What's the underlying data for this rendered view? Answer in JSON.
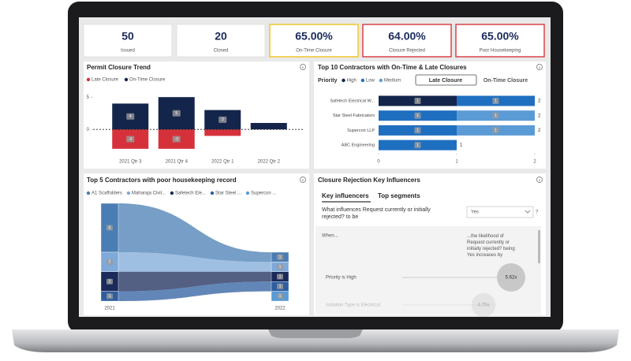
{
  "kpis": [
    {
      "value": "50",
      "label": "Issued",
      "border": "#dddddd"
    },
    {
      "value": "20",
      "label": "Closed",
      "border": "#dddddd"
    },
    {
      "value": "65.00%",
      "label": "On-Time Closure",
      "border": "#f0c419"
    },
    {
      "value": "64.00%",
      "label": "Closure Rejected",
      "border": "#d9363e"
    },
    {
      "value": "65.00%",
      "label": "Poor Housekeeping",
      "border": "#d9363e"
    }
  ],
  "chart_data": [
    {
      "type": "bar",
      "title": "Permit Closure Trend",
      "categories": [
        "2021 Qtr 3",
        "2021 Qtr 4",
        "2022 Qtr 1",
        "2022 Qtr 2"
      ],
      "series": [
        {
          "name": "Late Closure",
          "color": "#d6313b",
          "values": [
            -3,
            -3,
            -1,
            0
          ]
        },
        {
          "name": "On-Time Closure",
          "color": "#13254a",
          "values": [
            4,
            5,
            3,
            1
          ]
        }
      ],
      "ylim": [
        -4,
        6
      ],
      "yticks": [
        0,
        5
      ],
      "legend": "top-left",
      "zero_line": "dashed"
    },
    {
      "type": "hbar-stacked",
      "title": "Top 10 Contractors with On-Time & Late Closures",
      "legend_title": "Priority",
      "buttons": [
        "Late Closure",
        "On-Time Closure"
      ],
      "categories": [
        "Safetech Electrical W...",
        "Star Steel Fabricators",
        "Supercon LLP",
        "ABC Engineering"
      ],
      "series": [
        {
          "name": "High",
          "color": "#13254a",
          "values": [
            1,
            null,
            null,
            null
          ]
        },
        {
          "name": "Low",
          "color": "#1f6fc0",
          "values": [
            1,
            1,
            1,
            1
          ]
        },
        {
          "name": "Medium",
          "color": "#5b9bd5",
          "values": [
            null,
            1,
            1,
            null
          ]
        }
      ],
      "total_labels": [
        2,
        2,
        2,
        1
      ],
      "xlim": [
        0,
        2
      ],
      "xticks": [
        0,
        1,
        2
      ],
      "legend": "top-left"
    },
    {
      "type": "ribbon",
      "title": "Top 5 Contractors with poor housekeeping record",
      "categories": [
        "2021",
        "2022"
      ],
      "series": [
        {
          "name": "A1 Scaffolders",
          "color": "#4a7db3",
          "values": [
            5,
            1
          ]
        },
        {
          "name": "Maharaja Civil...",
          "color": "#7fa9d8",
          "values": [
            2,
            1
          ]
        },
        {
          "name": "Safetech Ele...",
          "color": "#1a2a5a",
          "values": [
            2,
            1
          ]
        },
        {
          "name": "Star Steel ...",
          "color": "#2e5ea0",
          "values": [
            1,
            1
          ]
        },
        {
          "name": "Supercon ...",
          "color": "#5b9bd5",
          "values": [
            null,
            1
          ]
        }
      ],
      "ylim": [
        0,
        10
      ],
      "legend": "top-left"
    }
  ],
  "key_influencers": {
    "title": "Closure Rejection Key Influencers",
    "tabs": [
      "Key influencers",
      "Top segments"
    ],
    "question": "What influences Request currently or initially rejected? to be",
    "selection": "Yes",
    "help": "?",
    "column_left": "When...",
    "column_right": "...the likelihood of Request currently or initially rejected? being Yes increases by",
    "items": [
      {
        "label": "Priority is High",
        "value": 5.62,
        "value_label": "5.62x"
      },
      {
        "label": "Isolation Type is Electrical",
        "value": 4.75,
        "value_label": "4.75x"
      }
    ]
  }
}
